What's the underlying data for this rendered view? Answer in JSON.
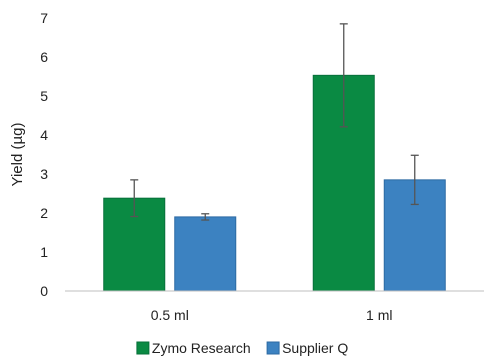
{
  "chart_data": {
    "type": "bar",
    "categories": [
      "0.5 ml",
      "1 ml"
    ],
    "series": [
      {
        "name": "Zymo Research",
        "color": "#0a8a43",
        "border_color": "#07703a",
        "values": [
          2.38,
          5.53
        ],
        "error": [
          0.47,
          1.32
        ]
      },
      {
        "name": "Supplier Q",
        "color": "#3c82c1",
        "border_color": "#2d6aa3",
        "values": [
          1.9,
          2.85
        ],
        "error": [
          0.08,
          0.63
        ]
      }
    ],
    "title": "",
    "xlabel": "",
    "ylabel": "Yield (µg)",
    "ylim": [
      0,
      7
    ],
    "yticks": [
      "0",
      "1",
      "2",
      "3",
      "4",
      "5",
      "6",
      "7"
    ],
    "grid": false,
    "legend_position": "bottom",
    "error_bar_color": "#555555",
    "axis_color": "#bfbfbf"
  }
}
